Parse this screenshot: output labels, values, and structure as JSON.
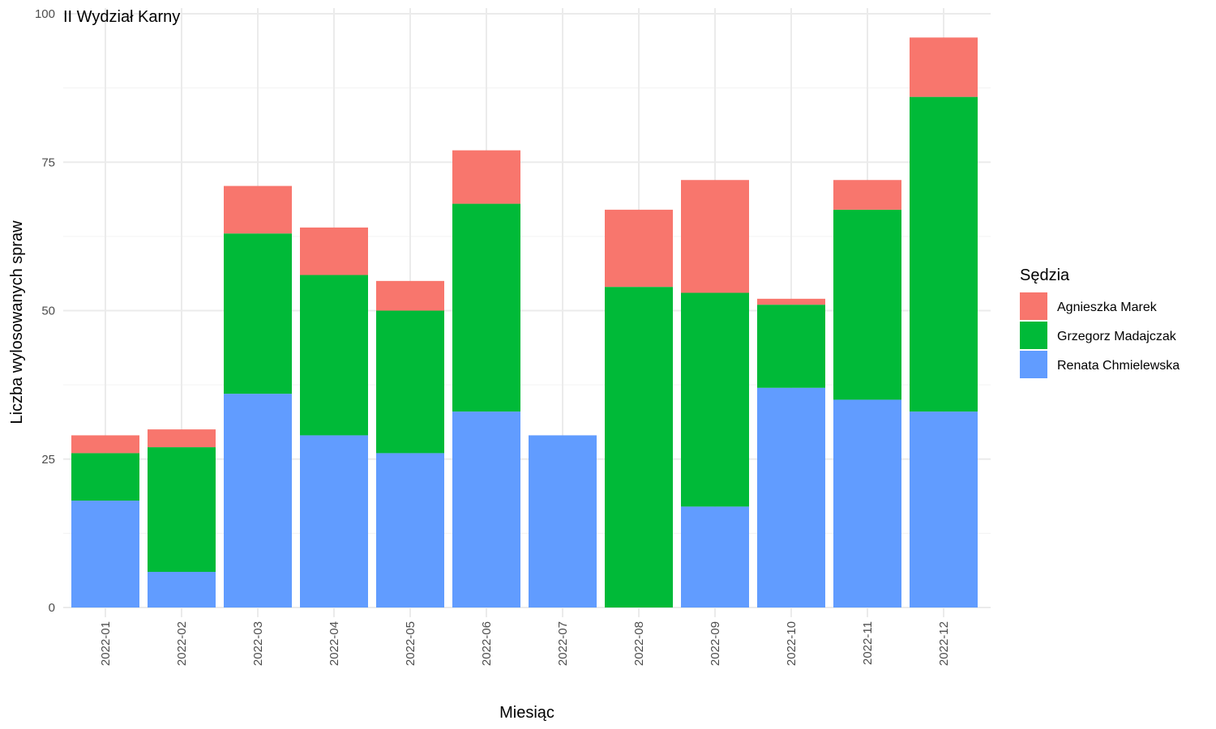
{
  "chart_data": {
    "type": "bar",
    "stacked": true,
    "panel_label": "II Wydział Karny",
    "xlabel": "Miesiąc",
    "ylabel": "Liczba wylosowanych spraw",
    "ylim": [
      0,
      100
    ],
    "yticks": [
      0,
      25,
      50,
      75,
      100
    ],
    "grid": true,
    "legend": {
      "title": "Sędzia",
      "position": "right"
    },
    "categories": [
      "2022-01",
      "2022-02",
      "2022-03",
      "2022-04",
      "2022-05",
      "2022-06",
      "2022-07",
      "2022-08",
      "2022-09",
      "2022-10",
      "2022-11",
      "2022-12"
    ],
    "series": [
      {
        "name": "Agnieszka Marek",
        "color": "#F8766D",
        "values": [
          3,
          3,
          8,
          8,
          5,
          9,
          0,
          13,
          19,
          1,
          5,
          10
        ]
      },
      {
        "name": "Grzegorz Madajczak",
        "color": "#00BA38",
        "values": [
          8,
          21,
          27,
          27,
          24,
          35,
          0,
          54,
          36,
          14,
          32,
          53
        ]
      },
      {
        "name": "Renata Chmielewska",
        "color": "#619CFF",
        "values": [
          18,
          6,
          36,
          29,
          26,
          33,
          29,
          0,
          17,
          37,
          35,
          33
        ]
      }
    ]
  }
}
